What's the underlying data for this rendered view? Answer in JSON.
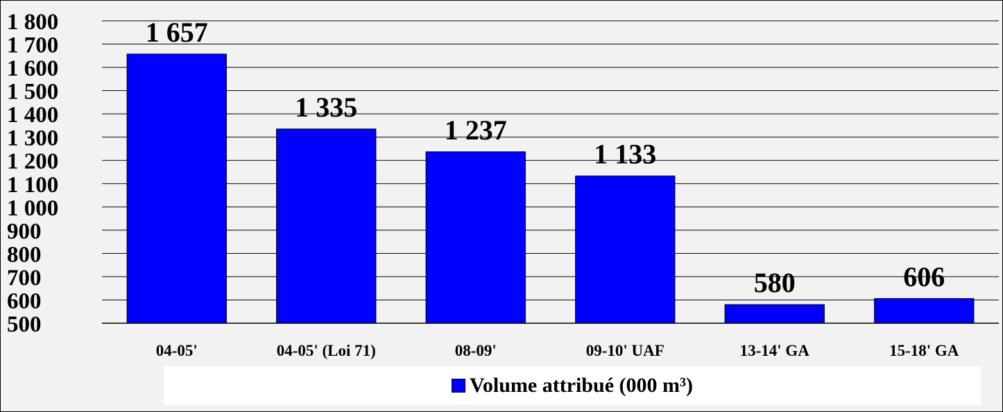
{
  "chart_data": {
    "type": "bar",
    "categories": [
      "04-05'",
      "04-05' (Loi 71)",
      "08-09'",
      "09-10' UAF",
      "13-14' GA",
      "15-18' GA"
    ],
    "series": [
      {
        "name": "Volume attribué (000 m³)",
        "values": [
          1657,
          1335,
          1237,
          1133,
          580,
          606
        ],
        "color": "#0000ff"
      }
    ],
    "data_labels": [
      "1 657",
      "1 335",
      "1 237",
      "1 133",
      "580",
      "606"
    ],
    "y_ticks": [
      500,
      600,
      700,
      800,
      900,
      1000,
      1100,
      1200,
      1300,
      1400,
      1500,
      1600,
      1700,
      1800
    ],
    "y_tick_labels": [
      "500",
      "600",
      "700",
      "800",
      "900",
      "1 000",
      "1 100",
      "1 200",
      "1 300",
      "1 400",
      "1 500",
      "1 600",
      "1 700",
      "1 800"
    ],
    "ylim": [
      500,
      1800
    ],
    "grid": true,
    "legend": {
      "position": "bottom",
      "label": "Volume attribué (000 m³)"
    },
    "title": "",
    "xlabel": "",
    "ylabel": ""
  }
}
